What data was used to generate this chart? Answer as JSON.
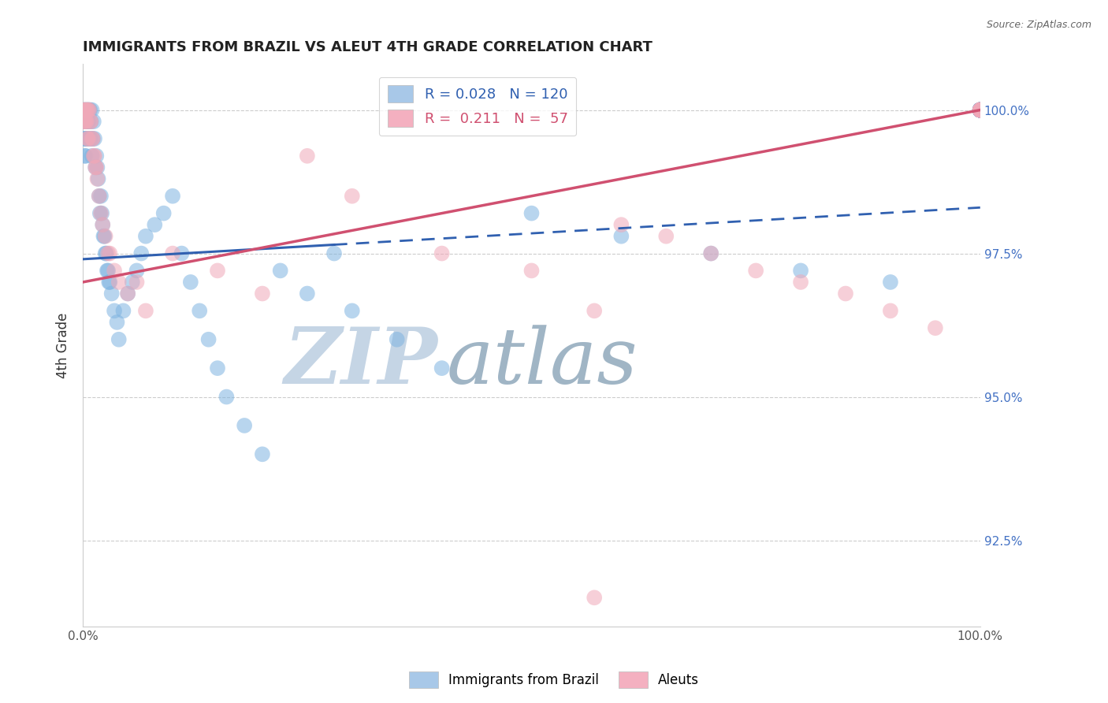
{
  "title": "IMMIGRANTS FROM BRAZIL VS ALEUT 4TH GRADE CORRELATION CHART",
  "source_text": "Source: ZipAtlas.com",
  "ylabel": "4th Grade",
  "legend_blue_label": "Immigrants from Brazil",
  "legend_pink_label": "Aleuts",
  "blue_R": 0.028,
  "blue_N": 120,
  "pink_R": 0.211,
  "pink_N": 57,
  "xmin": 0.0,
  "xmax": 100.0,
  "ymin": 91.0,
  "ymax": 100.8,
  "yticks": [
    92.5,
    95.0,
    97.5,
    100.0
  ],
  "ytick_labels": [
    "92.5%",
    "95.0%",
    "97.5%",
    "100.0%"
  ],
  "xtick_labels": [
    "0.0%",
    "100.0%"
  ],
  "blue_color": "#7eb3e0",
  "pink_color": "#f0a8b8",
  "blue_line_color": "#3060b0",
  "pink_line_color": "#d05070",
  "watermark_zip_color": "#c0cfe0",
  "watermark_atlas_color": "#a0b8c8",
  "background_color": "#ffffff",
  "blue_line_x0": 0.0,
  "blue_line_x1": 100.0,
  "blue_line_y0": 97.4,
  "blue_line_y1": 98.3,
  "blue_solid_end_x": 28.0,
  "pink_line_x0": 0.0,
  "pink_line_x1": 100.0,
  "pink_line_y0": 97.0,
  "pink_line_y1": 100.0,
  "blue_scatter_x": [
    0.1,
    0.1,
    0.1,
    0.2,
    0.2,
    0.2,
    0.2,
    0.3,
    0.3,
    0.3,
    0.3,
    0.4,
    0.4,
    0.4,
    0.5,
    0.5,
    0.5,
    0.6,
    0.6,
    0.7,
    0.7,
    0.8,
    0.8,
    0.9,
    0.9,
    1.0,
    1.0,
    1.1,
    1.2,
    1.3,
    1.4,
    1.5,
    1.6,
    1.7,
    1.8,
    1.9,
    2.0,
    2.1,
    2.2,
    2.3,
    2.4,
    2.5,
    2.6,
    2.7,
    2.8,
    2.9,
    3.0,
    3.2,
    3.5,
    3.8,
    4.0,
    4.5,
    5.0,
    5.5,
    6.0,
    6.5,
    7.0,
    8.0,
    9.0,
    10.0,
    11.0,
    12.0,
    13.0,
    14.0,
    15.0,
    16.0,
    18.0,
    20.0,
    22.0,
    25.0,
    28.0,
    30.0,
    35.0,
    40.0,
    50.0,
    60.0,
    70.0,
    80.0,
    90.0,
    100.0,
    100.0,
    100.0,
    100.0,
    100.0,
    100.0,
    100.0,
    100.0,
    100.0,
    100.0,
    100.0,
    100.0,
    100.0,
    100.0,
    100.0,
    100.0,
    100.0,
    100.0,
    100.0,
    100.0,
    100.0,
    100.0,
    100.0,
    100.0,
    100.0,
    100.0,
    100.0,
    100.0,
    100.0,
    100.0,
    100.0,
    100.0,
    100.0,
    100.0,
    100.0,
    100.0,
    100.0,
    100.0,
    100.0,
    100.0,
    100.0
  ],
  "blue_scatter_y": [
    99.8,
    100.0,
    99.5,
    99.8,
    100.0,
    99.5,
    99.2,
    99.8,
    100.0,
    99.5,
    99.2,
    99.8,
    100.0,
    99.5,
    99.8,
    100.0,
    99.5,
    99.8,
    100.0,
    99.8,
    100.0,
    99.5,
    100.0,
    99.8,
    99.5,
    99.2,
    100.0,
    99.5,
    99.8,
    99.5,
    99.0,
    99.2,
    99.0,
    98.8,
    98.5,
    98.2,
    98.5,
    98.2,
    98.0,
    97.8,
    97.8,
    97.5,
    97.5,
    97.2,
    97.2,
    97.0,
    97.0,
    96.8,
    96.5,
    96.3,
    96.0,
    96.5,
    96.8,
    97.0,
    97.2,
    97.5,
    97.8,
    98.0,
    98.2,
    98.5,
    97.5,
    97.0,
    96.5,
    96.0,
    95.5,
    95.0,
    94.5,
    94.0,
    97.2,
    96.8,
    97.5,
    96.5,
    96.0,
    95.5,
    98.2,
    97.8,
    97.5,
    97.2,
    97.0,
    100.0,
    100.0,
    100.0,
    100.0,
    100.0,
    100.0,
    100.0,
    100.0,
    100.0,
    100.0,
    100.0,
    100.0,
    100.0,
    100.0,
    100.0,
    100.0,
    100.0,
    100.0,
    100.0,
    100.0,
    100.0,
    100.0,
    100.0,
    100.0,
    100.0,
    100.0,
    100.0,
    100.0,
    100.0,
    100.0,
    100.0,
    100.0,
    100.0,
    100.0,
    100.0,
    100.0,
    100.0,
    100.0,
    100.0,
    100.0,
    100.0
  ],
  "pink_scatter_x": [
    0.1,
    0.1,
    0.2,
    0.2,
    0.3,
    0.3,
    0.4,
    0.4,
    0.5,
    0.5,
    0.6,
    0.6,
    0.7,
    0.8,
    0.9,
    1.0,
    1.1,
    1.2,
    1.3,
    1.4,
    1.5,
    1.6,
    1.8,
    2.0,
    2.2,
    2.5,
    2.8,
    3.0,
    3.5,
    4.0,
    5.0,
    6.0,
    7.0,
    10.0,
    15.0,
    20.0,
    25.0,
    30.0,
    40.0,
    50.0,
    57.0,
    60.0,
    65.0,
    70.0,
    75.0,
    80.0,
    85.0,
    90.0,
    95.0,
    100.0,
    100.0,
    100.0,
    100.0,
    100.0,
    100.0,
    100.0,
    57.0
  ],
  "pink_scatter_y": [
    100.0,
    99.8,
    100.0,
    99.8,
    100.0,
    99.8,
    100.0,
    99.8,
    100.0,
    99.5,
    100.0,
    99.5,
    100.0,
    99.8,
    99.8,
    99.5,
    99.5,
    99.2,
    99.2,
    99.0,
    99.0,
    98.8,
    98.5,
    98.2,
    98.0,
    97.8,
    97.5,
    97.5,
    97.2,
    97.0,
    96.8,
    97.0,
    96.5,
    97.5,
    97.2,
    96.8,
    99.2,
    98.5,
    97.5,
    97.2,
    91.5,
    98.0,
    97.8,
    97.5,
    97.2,
    97.0,
    96.8,
    96.5,
    96.2,
    100.0,
    100.0,
    100.0,
    100.0,
    100.0,
    100.0,
    100.0,
    96.5
  ]
}
